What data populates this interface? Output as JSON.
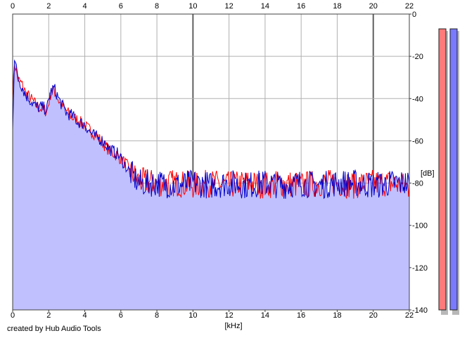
{
  "chart_data": {
    "type": "line",
    "xlabel": "[kHz]",
    "ylabel": "[dB]",
    "xlim": [
      0,
      22
    ],
    "ylim": [
      -140,
      0
    ],
    "x_ticks": [
      0,
      2,
      4,
      6,
      8,
      10,
      12,
      14,
      16,
      18,
      20,
      22
    ],
    "y_ticks": [
      0,
      -20,
      -40,
      -60,
      -80,
      -100,
      -120,
      -140
    ],
    "y_tick_labels": [
      "0",
      "-20",
      "-40",
      "-60",
      "-80",
      "-100",
      "-120",
      "-140"
    ],
    "grid": true,
    "fill_color": "#c0c0ff",
    "series": [
      {
        "color": "#ff0000",
        "x": [
          0.0,
          0.1,
          0.2,
          0.3,
          0.5,
          0.7,
          1.0,
          1.3,
          1.6,
          1.9,
          2.1,
          2.3,
          2.6,
          3.0,
          3.3,
          3.6,
          4.0,
          4.3,
          4.6,
          5.0,
          5.4,
          5.8,
          6.2,
          6.6,
          7.0,
          8.0,
          9.0,
          10.0,
          11.0,
          12.0,
          13.0,
          14.0,
          15.0,
          16.0,
          17.0,
          18.0,
          19.0,
          20.0,
          21.0,
          22.0
        ],
        "values": [
          -40,
          -23,
          -27,
          -31,
          -33,
          -37,
          -40,
          -43,
          -45,
          -46,
          -38,
          -36,
          -42,
          -46,
          -49,
          -50,
          -53,
          -55,
          -57,
          -61,
          -65,
          -67,
          -70,
          -75,
          -79,
          -80,
          -80,
          -81,
          -80,
          -81,
          -80,
          -81,
          -80,
          -81,
          -80,
          -80,
          -81,
          -80,
          -80,
          -82
        ]
      },
      {
        "color": "#0000cc",
        "x": [
          0.0,
          0.1,
          0.2,
          0.3,
          0.5,
          0.7,
          1.0,
          1.3,
          1.6,
          1.9,
          2.1,
          2.3,
          2.6,
          3.0,
          3.3,
          3.6,
          4.0,
          4.3,
          4.6,
          5.0,
          5.4,
          5.8,
          6.2,
          6.6,
          7.0,
          8.0,
          9.0,
          10.0,
          11.0,
          12.0,
          13.0,
          14.0,
          15.0,
          16.0,
          17.0,
          18.0,
          19.0,
          20.0,
          21.0,
          22.0
        ],
        "values": [
          -53,
          -21,
          -26,
          -30,
          -34,
          -38,
          -41,
          -44,
          -44,
          -45,
          -37,
          -35,
          -41,
          -47,
          -48,
          -51,
          -52,
          -56,
          -58,
          -60,
          -64,
          -66,
          -71,
          -76,
          -80,
          -80,
          -81,
          -80,
          -81,
          -80,
          -81,
          -80,
          -81,
          -80,
          -81,
          -80,
          -80,
          -81,
          -80,
          -80
        ]
      }
    ],
    "meters": [
      {
        "color": "#ff7a7a",
        "level_db": -7
      },
      {
        "color": "#7a7aff",
        "level_db": -7
      }
    ]
  },
  "credit": "created by Hub Audio Tools"
}
